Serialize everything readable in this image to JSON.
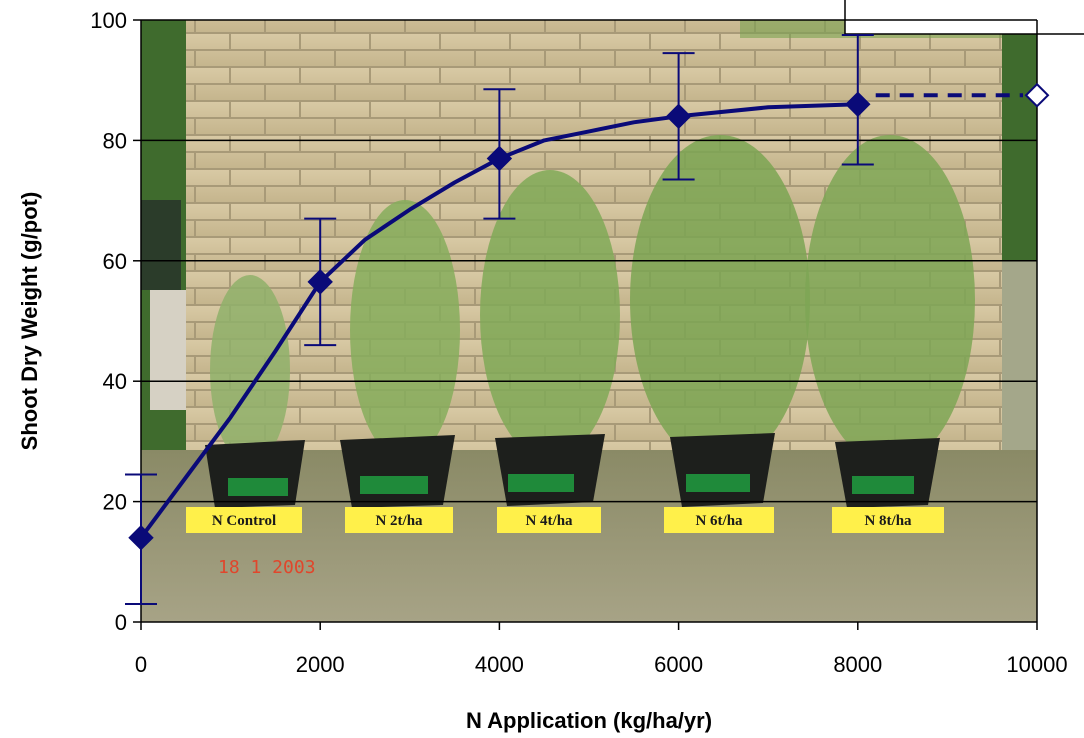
{
  "chart_data": {
    "type": "line",
    "title": "",
    "xlabel": "N Application (kg/ha/yr)",
    "ylabel": "Shoot Dry Weight (g/pot)",
    "xlim": [
      0,
      10000
    ],
    "ylim": [
      0,
      100
    ],
    "x_ticks": [
      0,
      2000,
      4000,
      6000,
      8000,
      10000
    ],
    "y_ticks": [
      0,
      20,
      40,
      60,
      80,
      100
    ],
    "grid": "horizontal",
    "line_color": "#0a0a78",
    "background_photo_labels": [
      "N Control",
      "N 2t/ha",
      "N 4t/ha",
      "N 6t/ha",
      "N 8t/ha"
    ],
    "photo_date_stamp": "18 1 2003",
    "series": [
      {
        "marker": "filled-diamond",
        "points": [
          {
            "x": 0,
            "y": 14.0,
            "err_low": 3.0,
            "err_high": 24.5
          },
          {
            "x": 2000,
            "y": 56.5,
            "err_low": 46.0,
            "err_high": 67.0
          },
          {
            "x": 4000,
            "y": 77.0,
            "err_low": 67.0,
            "err_high": 88.5
          },
          {
            "x": 6000,
            "y": 84.0,
            "err_low": 73.5,
            "err_high": 94.5
          },
          {
            "x": 8000,
            "y": 86.0,
            "err_low": 76.0,
            "err_high": 97.5
          }
        ],
        "smooth_curve": [
          [
            0,
            14.0
          ],
          [
            500,
            24.0
          ],
          [
            1000,
            34.0
          ],
          [
            1500,
            45.0
          ],
          [
            2000,
            56.5
          ],
          [
            2500,
            63.5
          ],
          [
            3000,
            68.5
          ],
          [
            3500,
            73.0
          ],
          [
            4000,
            77.0
          ],
          [
            4500,
            80.0
          ],
          [
            5000,
            81.5
          ],
          [
            5500,
            83.0
          ],
          [
            6000,
            84.0
          ],
          [
            7000,
            85.5
          ],
          [
            8000,
            86.0
          ]
        ]
      },
      {
        "marker": "open-diamond",
        "style": "dashed",
        "points": [
          {
            "x": 10000,
            "y": 87.5
          }
        ],
        "line_from": [
          8200,
          87.5
        ]
      }
    ]
  }
}
